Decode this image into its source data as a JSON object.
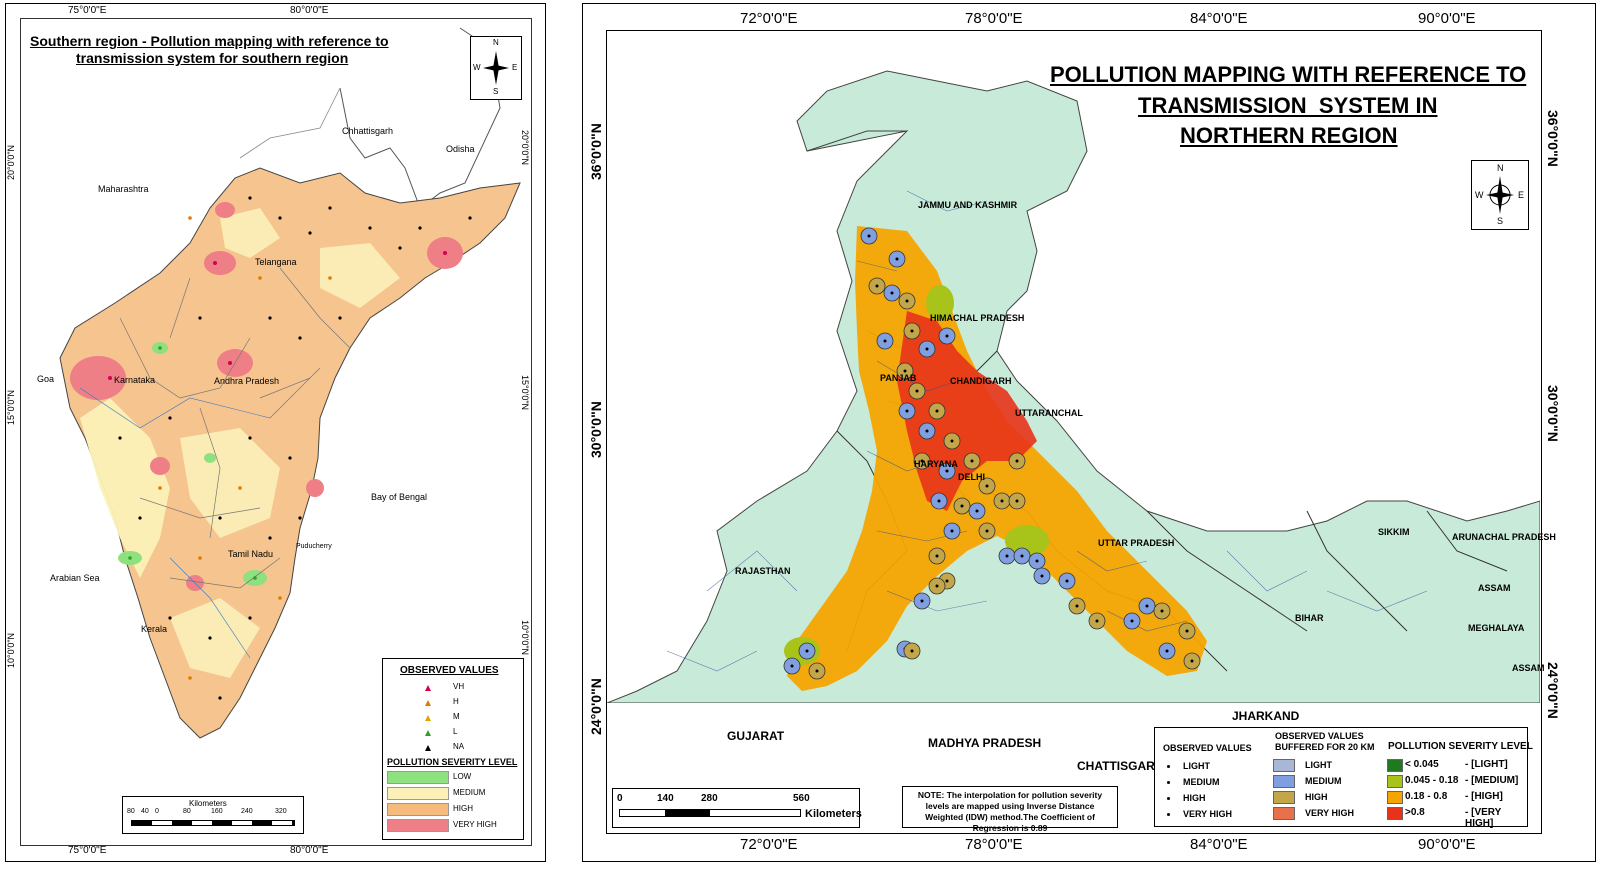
{
  "left_map": {
    "title_line1": "Southern region - Pollution mapping with reference to",
    "title_line2": "transmission system for southern region",
    "top_coords": [
      "75°0'0\"E",
      "80°0'0\"E"
    ],
    "bottom_coords": [
      "75°0'0\"E",
      "80°0'0\"E"
    ],
    "side_coords": [
      "20°0'0\"N",
      "15°0'0\"N",
      "10°0'0\"N"
    ],
    "places": {
      "chhattisgarh": "Chhattisgarh",
      "odisha": "Odisha",
      "maharashtra": "Maharashtra",
      "telangana": "Telangana",
      "karnataka": "Karnataka",
      "andhra": "Andhra Pradesh",
      "goa": "Goa",
      "bay": "Bay of Bengal",
      "tamil": "Tamil Nadu",
      "puducherry": "Puducherry",
      "arabian": "Arabian Sea",
      "kerala": "Kerala"
    },
    "compass": {
      "n": "N",
      "s": "S",
      "e": "E",
      "w": "W"
    },
    "legend": {
      "observed_title": "OBSERVED VALUES",
      "observed": [
        "VH",
        "H",
        "M",
        "L",
        "NA"
      ],
      "observed_colors": [
        "#d6004c",
        "#e07a00",
        "#e3a400",
        "#2ca02c",
        "#000000"
      ],
      "severity_title": "POLLUTION SEVERITY LEVEL",
      "severity": [
        "LOW",
        "MEDIUM",
        "HIGH",
        "VERY HIGH"
      ],
      "severity_colors": [
        "#8fe07e",
        "#fbf1b8",
        "#f4bb7c",
        "#ef7f86"
      ]
    },
    "scale": {
      "unit": "Kilometers",
      "ticks": [
        "80",
        "40",
        "0",
        "80",
        "160",
        "240",
        "320"
      ]
    }
  },
  "right_map": {
    "title_line1": "POLLUTION MAPPING WITH REFERENCE TO",
    "title_line2": "TRANSMISSION  SYSTEM IN",
    "title_line3": "NORTHERN REGION",
    "top_coords": [
      "72°0'0\"E",
      "78°0'0\"E",
      "84°0'0\"E",
      "90°0'0\"E"
    ],
    "bottom_coords": [
      "72°0'0\"E",
      "78°0'0\"E",
      "84°0'0\"E",
      "90°0'0\"E"
    ],
    "side_coords": [
      "36°0'0\"N",
      "30°0'0\"N",
      "24°0'0\"N"
    ],
    "states": {
      "jk": "JAMMU AND KASHMIR",
      "hp": "HIMACHAL PRADESH",
      "punjab": "PANJAB",
      "chandigarh": "CHANDIGARH",
      "uttaranchal": "UTTARANCHAL",
      "haryana": "HARYANA",
      "delhi": "DELHI",
      "rajasthan": "RAJASTHAN",
      "up": "UTTAR PRADESH",
      "sikkim": "SIKKIM",
      "arunachal": "ARUNACHAL PRADESH",
      "assam": "ASSAM",
      "assam2": "ASSAM",
      "meghalaya": "MEGHALAYA",
      "bihar": "BIHAR",
      "jharkand": "JHARKAND",
      "gujarat": "GUJARAT",
      "mp": "MADHYA PRADESH",
      "chattisgarh": "CHATTISGARH"
    },
    "compass": {
      "n": "N",
      "s": "S",
      "e": "E",
      "w": "W"
    },
    "scale": {
      "unit": "Kilometers",
      "ticks": [
        "0",
        "140",
        "280",
        "560"
      ]
    },
    "note": "NOTE: The interpolation for pollution severity levels are mapped using Inverse Distance Weighted (IDW) method.The Coefficient of Regression is 0.89",
    "legend": {
      "observed_title": "OBSERVED VALUES",
      "observed": [
        "LIGHT",
        "MEDIUM",
        "HIGH",
        "VERY HIGH"
      ],
      "buffered_title1": "OBSERVED VALUES",
      "buffered_title2": "BUFFERED FOR 20 KM",
      "buffered": [
        "LIGHT",
        "MEDIUM",
        "HIGH",
        "VERY HIGH"
      ],
      "buffered_colors": [
        "#a9b7d6",
        "#7f9fe0",
        "#c3a64a",
        "#e8704a"
      ],
      "severity_title": "POLLUTION SEVERITY LEVEL",
      "severity_ranges": [
        "< 0.045",
        "0.045 - 0.18",
        "0.18 - 0.8",
        ">0.8"
      ],
      "severity_labels": [
        "- [LIGHT]",
        "- [MEDIUM]",
        "- [HIGH]",
        "- [VERY HIGH]"
      ],
      "severity_colors": [
        "#1f7a1f",
        "#a8c41a",
        "#f5a400",
        "#e8331a"
      ]
    }
  }
}
